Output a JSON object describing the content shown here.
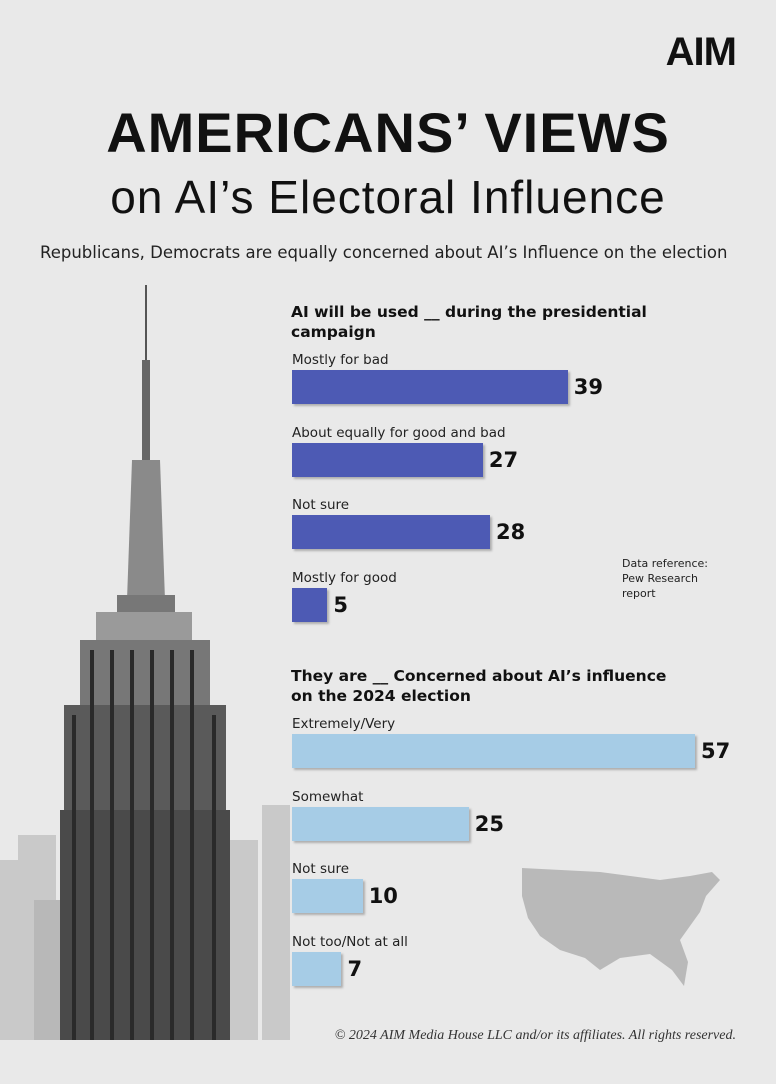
{
  "logo": "AIM",
  "title": "AMERICANS’ VIEWS",
  "subtitle": "on AI’s Electoral Influence",
  "description": "Republicans, Democrats are equally concerned about AI’s Influence on the election",
  "note": "Data reference: Pew Research report",
  "footer": "© 2024 AIM Media House LLC and/or its affiliates. All rights reserved.",
  "chart_data": [
    {
      "type": "bar",
      "orientation": "horizontal",
      "title": "AI will be used __ during the presidential campaign",
      "categories": [
        "Mostly for bad",
        "About equally for good and bad",
        "Not sure",
        "Mostly for good"
      ],
      "values": [
        39,
        27,
        28,
        5
      ],
      "color": "#4d5ab4"
    },
    {
      "type": "bar",
      "orientation": "horizontal",
      "title": "They are __ Concerned about AI’s influence on the 2024 election",
      "categories": [
        "Extremely/Very",
        "Somewhat",
        "Not sure",
        "Not too/Not at all"
      ],
      "values": [
        57,
        25,
        10,
        7
      ],
      "color": "#a6cce6"
    }
  ]
}
